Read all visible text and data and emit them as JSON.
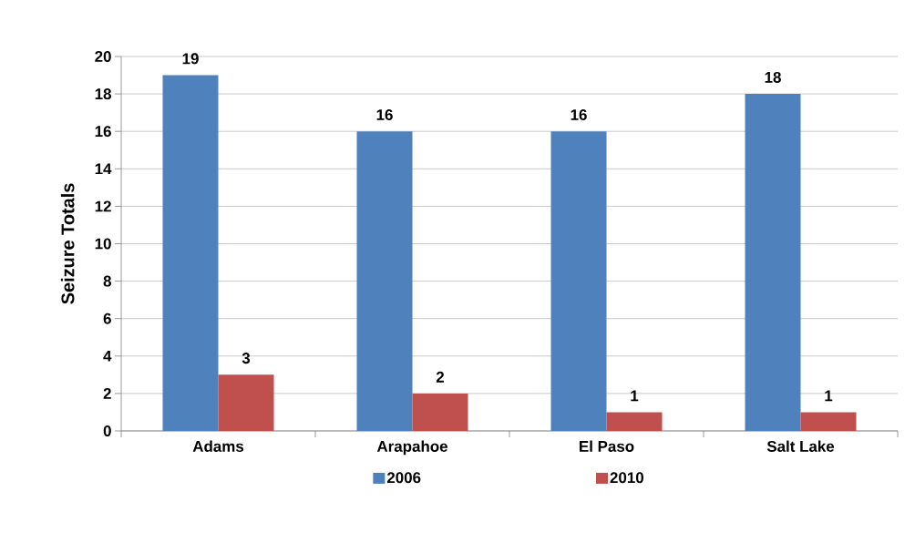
{
  "chart_data": {
    "type": "bar",
    "ylabel": "Seizure Totals",
    "categories": [
      "Adams",
      "Arapahoe",
      "El Paso",
      "Salt Lake"
    ],
    "series": [
      {
        "name": "2006",
        "color": "#4f81bd",
        "values": [
          19,
          16,
          16,
          18
        ]
      },
      {
        "name": "2010",
        "color": "#c0504d",
        "values": [
          3,
          2,
          1,
          1
        ]
      }
    ],
    "ylim": [
      0,
      20
    ],
    "yticks": [
      0,
      2,
      4,
      6,
      8,
      10,
      12,
      14,
      16,
      18,
      20
    ],
    "grid": "y",
    "legend": "bottom",
    "data_labels": true
  }
}
